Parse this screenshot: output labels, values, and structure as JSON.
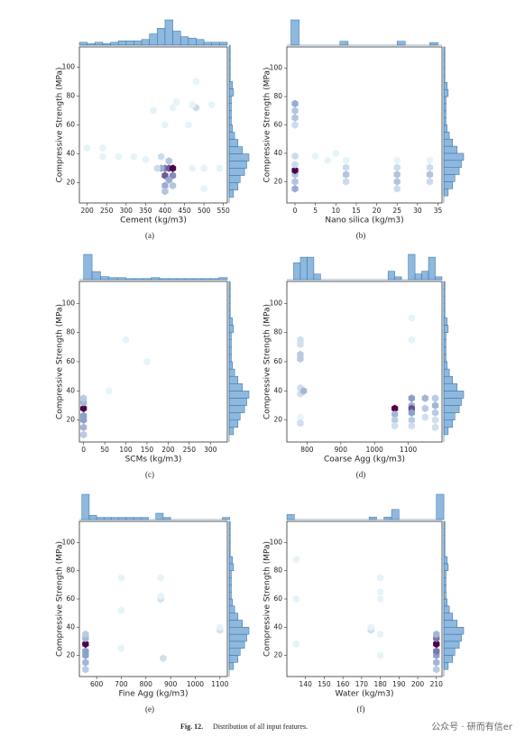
{
  "chart_data": [
    {
      "type": "hexbin",
      "xlabel": "Cement (kg/m3)",
      "ylabel": "Compressive Strength (MPa)",
      "caption": "(a)",
      "xlim": [
        180,
        560
      ],
      "ylim": [
        6,
        114
      ],
      "xticks": [
        200,
        250,
        300,
        350,
        400,
        450,
        500,
        550
      ],
      "yticks": [
        20,
        40,
        60,
        80,
        100
      ],
      "hexes": {
        "x": [
          400,
          410,
          420,
          390,
          400,
          420,
          410,
          400,
          420,
          400,
          410,
          390,
          380,
          200,
          240,
          240,
          280,
          320,
          350,
          470,
          500,
          500,
          480,
          470,
          480,
          430,
          370,
          400,
          460,
          520,
          540,
          420
        ],
        "y": [
          30,
          30,
          30,
          30,
          25,
          25,
          22,
          18,
          18,
          14,
          35,
          38,
          30,
          44,
          44,
          38,
          38,
          38,
          36,
          30,
          30,
          16,
          72,
          74,
          90,
          76,
          70,
          60,
          60,
          74,
          30,
          72
        ],
        "counts": [
          5,
          6,
          8,
          4,
          6,
          5,
          4,
          4,
          3,
          3,
          3,
          2,
          2,
          1,
          1,
          1,
          1,
          1,
          1,
          1,
          1,
          1,
          2,
          1,
          1,
          1,
          1,
          1,
          1,
          1,
          1,
          1
        ]
      },
      "top_hist": {
        "bins": [
          180,
          200,
          220,
          240,
          260,
          280,
          300,
          320,
          340,
          360,
          380,
          400,
          420,
          440,
          460,
          480,
          500,
          520,
          540,
          560
        ],
        "counts": [
          2,
          1,
          2,
          1,
          2,
          3,
          3,
          3,
          4,
          8,
          12,
          18,
          10,
          6,
          5,
          4,
          2,
          2,
          2
        ]
      },
      "right_hist": {
        "bins": [
          10,
          15,
          20,
          25,
          30,
          35,
          40,
          45,
          50,
          55,
          60,
          65,
          70,
          75,
          80,
          85,
          90,
          95,
          100,
          105,
          110,
          115
        ],
        "counts": [
          4,
          8,
          10,
          14,
          16,
          18,
          12,
          8,
          5,
          3,
          2,
          2,
          2,
          2,
          4,
          3,
          1,
          1,
          1,
          1,
          1
        ]
      }
    },
    {
      "type": "hexbin",
      "xlabel": "Nano silica (kg/m3)",
      "ylabel": "Compressive Strength (MPa)",
      "caption": "(b)",
      "xlim": [
        -2,
        36
      ],
      "ylim": [
        5,
        115
      ],
      "xticks": [
        0,
        5,
        10,
        15,
        20,
        25,
        30,
        35
      ],
      "yticks": [
        20,
        40,
        60,
        80,
        100
      ],
      "hexes": {
        "x": [
          0,
          0,
          0,
          0,
          0,
          0,
          0,
          0,
          0,
          0,
          12.5,
          12.5,
          12.5,
          12.5,
          25,
          25,
          25,
          25,
          25,
          33,
          33,
          33,
          33,
          5,
          8,
          10
        ],
        "y": [
          15,
          20,
          25,
          28,
          32,
          38,
          60,
          65,
          70,
          75,
          20,
          25,
          30,
          35,
          15,
          20,
          25,
          30,
          35,
          20,
          25,
          30,
          35,
          38,
          35,
          40
        ],
        "counts": [
          4,
          3,
          3,
          8,
          2,
          2,
          2,
          3,
          3,
          4,
          2,
          3,
          2,
          1,
          2,
          3,
          3,
          2,
          1,
          2,
          3,
          2,
          1,
          1,
          1,
          1
        ]
      },
      "top_hist": {
        "bins": [
          -1,
          1,
          3,
          5,
          7,
          9,
          11,
          13,
          15,
          17,
          19,
          21,
          23,
          25,
          27,
          29,
          31,
          33,
          35
        ],
        "counts": [
          20,
          0,
          0,
          0,
          0,
          0,
          3,
          0,
          0,
          0,
          0,
          0,
          0,
          3,
          0,
          0,
          0,
          2
        ]
      },
      "right_hist": {
        "bins": [
          10,
          15,
          20,
          25,
          30,
          35,
          40,
          45,
          50,
          55,
          60,
          65,
          70,
          75,
          80,
          85,
          90,
          95,
          100,
          105,
          110,
          115
        ],
        "counts": [
          4,
          8,
          10,
          14,
          16,
          18,
          12,
          8,
          5,
          3,
          2,
          2,
          2,
          2,
          4,
          3,
          1,
          1,
          1,
          1,
          1
        ]
      }
    },
    {
      "type": "hexbin",
      "xlabel": "SCMs (kg/m3)",
      "ylabel": "Compressive Strength (MPa)",
      "caption": "(c)",
      "xlim": [
        -10,
        340
      ],
      "ylim": [
        5,
        115
      ],
      "xticks": [
        0,
        50,
        100,
        150,
        200,
        250,
        300
      ],
      "yticks": [
        20,
        40,
        60,
        80,
        100
      ],
      "hexes": {
        "x": [
          0,
          0,
          0,
          0,
          0,
          0,
          0,
          100,
          150,
          60
        ],
        "y": [
          10,
          15,
          20,
          23,
          28,
          32,
          35,
          75,
          60,
          40
        ],
        "counts": [
          3,
          4,
          5,
          5,
          9,
          4,
          3,
          1,
          1,
          1
        ]
      },
      "top_hist": {
        "bins": [
          0,
          20,
          40,
          60,
          80,
          100,
          120,
          140,
          160,
          180,
          200,
          220,
          240,
          260,
          280,
          300,
          320,
          340
        ],
        "counts": [
          25,
          8,
          3,
          2,
          2,
          1,
          1,
          1,
          2,
          1,
          1,
          1,
          1,
          1,
          1,
          1,
          2
        ]
      },
      "right_hist": {
        "bins": [
          10,
          15,
          20,
          25,
          30,
          35,
          40,
          45,
          50,
          55,
          60,
          65,
          70,
          75,
          80,
          85,
          90,
          95,
          100,
          105,
          110,
          115
        ],
        "counts": [
          4,
          8,
          10,
          14,
          16,
          18,
          12,
          8,
          5,
          3,
          2,
          2,
          2,
          2,
          4,
          3,
          1,
          1,
          1,
          1,
          1
        ]
      }
    },
    {
      "type": "hexbin",
      "xlabel": "Coarse Agg (kg/m3)",
      "ylabel": "Compressive Strength (MPa)",
      "caption": "(d)",
      "xlim": [
        740,
        1200
      ],
      "ylim": [
        5,
        115
      ],
      "xticks": [
        800,
        900,
        1000,
        1100
      ],
      "yticks": [
        20,
        40,
        60,
        80,
        100
      ],
      "hexes": {
        "x": [
          780,
          780,
          780,
          780,
          780,
          780,
          790,
          780,
          780,
          1060,
          1060,
          1060,
          1060,
          1110,
          1110,
          1110,
          1110,
          1110,
          1110,
          1110,
          1110,
          1150,
          1150,
          1150,
          1180,
          1180,
          1180,
          1180,
          1180
        ],
        "y": [
          62,
          65,
          72,
          75,
          38,
          42,
          40,
          22,
          18,
          28,
          24,
          20,
          16,
          35,
          30,
          28,
          25,
          20,
          16,
          75,
          90,
          35,
          28,
          22,
          35,
          30,
          25,
          20,
          15
        ],
        "counts": [
          3,
          3,
          2,
          2,
          2,
          2,
          4,
          1,
          2,
          9,
          4,
          3,
          2,
          5,
          4,
          7,
          5,
          3,
          2,
          1,
          1,
          4,
          3,
          2,
          3,
          4,
          3,
          2,
          2
        ]
      },
      "top_hist": {
        "bins": [
          760,
          780,
          800,
          820,
          840,
          860,
          880,
          900,
          920,
          940,
          960,
          980,
          1000,
          1020,
          1040,
          1060,
          1080,
          1100,
          1120,
          1140,
          1160,
          1180,
          1200
        ],
        "counts": [
          6,
          8,
          8,
          2,
          0,
          0,
          0,
          0,
          0,
          0,
          0,
          0,
          0,
          0,
          3,
          1,
          0,
          9,
          2,
          3,
          8,
          1
        ]
      },
      "right_hist": {
        "bins": [
          10,
          15,
          20,
          25,
          30,
          35,
          40,
          45,
          50,
          55,
          60,
          65,
          70,
          75,
          80,
          85,
          90,
          95,
          100,
          105,
          110,
          115
        ],
        "counts": [
          4,
          8,
          10,
          14,
          16,
          18,
          12,
          8,
          5,
          3,
          2,
          2,
          2,
          2,
          4,
          3,
          1,
          1,
          1,
          1,
          1
        ]
      }
    },
    {
      "type": "hexbin",
      "xlabel": "Fine Agg (kg/m3)",
      "ylabel": "Compressive Strength (MPa)",
      "caption": "(e)",
      "xlim": [
        530,
        1130
      ],
      "ylim": [
        5,
        115
      ],
      "xticks": [
        600,
        700,
        800,
        900,
        1000,
        1100
      ],
      "yticks": [
        20,
        40,
        60,
        80,
        100
      ],
      "hexes": {
        "x": [
          555,
          555,
          555,
          555,
          555,
          555,
          555,
          860,
          860,
          860,
          870,
          700,
          700,
          700,
          1100,
          1100
        ],
        "y": [
          10,
          15,
          20,
          23,
          28,
          32,
          35,
          60,
          62,
          75,
          18,
          75,
          52,
          25,
          38,
          40
        ],
        "counts": [
          3,
          4,
          5,
          5,
          9,
          4,
          3,
          2,
          1,
          1,
          2,
          1,
          1,
          1,
          2,
          1
        ]
      },
      "top_hist": {
        "bins": [
          540,
          570,
          600,
          630,
          660,
          690,
          720,
          750,
          780,
          810,
          840,
          870,
          900,
          930,
          960,
          990,
          1020,
          1050,
          1080,
          1110,
          1140
        ],
        "counts": [
          12,
          2,
          1,
          1,
          1,
          1,
          1,
          1,
          1,
          0,
          3,
          1,
          0,
          0,
          0,
          0,
          0,
          0,
          0,
          1
        ]
      },
      "right_hist": {
        "bins": [
          10,
          15,
          20,
          25,
          30,
          35,
          40,
          45,
          50,
          55,
          60,
          65,
          70,
          75,
          80,
          85,
          90,
          95,
          100,
          105,
          110,
          115
        ],
        "counts": [
          4,
          8,
          10,
          14,
          16,
          18,
          12,
          8,
          5,
          3,
          2,
          2,
          2,
          2,
          4,
          3,
          1,
          1,
          1,
          1,
          1
        ]
      }
    },
    {
      "type": "hexbin",
      "xlabel": "Water (kg/m3)",
      "ylabel": "Compressive Strength (MPa)",
      "caption": "(f)",
      "xlim": [
        130,
        213
      ],
      "ylim": [
        5,
        115
      ],
      "xticks": [
        140,
        150,
        160,
        170,
        180,
        190,
        200,
        210
      ],
      "yticks": [
        20,
        40,
        60,
        80,
        100
      ],
      "hexes": {
        "x": [
          210,
          210,
          210,
          210,
          210,
          210,
          210,
          180,
          180,
          180,
          180,
          180,
          175,
          175,
          135,
          135,
          135
        ],
        "y": [
          10,
          15,
          20,
          23,
          28,
          32,
          35,
          20,
          35,
          60,
          65,
          75,
          38,
          40,
          28,
          60,
          88
        ],
        "counts": [
          3,
          4,
          5,
          6,
          9,
          6,
          4,
          1,
          1,
          1,
          1,
          1,
          2,
          1,
          1,
          1,
          1
        ]
      },
      "top_hist": {
        "bins": [
          130,
          134,
          138,
          142,
          146,
          150,
          154,
          158,
          162,
          166,
          170,
          174,
          178,
          182,
          186,
          190,
          194,
          198,
          202,
          206,
          210,
          214
        ],
        "counts": [
          2,
          0,
          0,
          0,
          0,
          0,
          0,
          0,
          0,
          0,
          0,
          1,
          0,
          1,
          4,
          0,
          0,
          0,
          0,
          0,
          10
        ]
      },
      "right_hist": {
        "bins": [
          10,
          15,
          20,
          25,
          30,
          35,
          40,
          45,
          50,
          55,
          60,
          65,
          70,
          75,
          80,
          85,
          90,
          95,
          100,
          105,
          110,
          115
        ],
        "counts": [
          4,
          8,
          10,
          14,
          16,
          18,
          12,
          8,
          5,
          3,
          2,
          2,
          2,
          2,
          4,
          3,
          1,
          1,
          1,
          1,
          1
        ]
      }
    }
  ],
  "figure_caption": {
    "label": "Fig. 12.",
    "text": "Distribution of all input features."
  },
  "watermark": "公众号 · 研而有信er"
}
